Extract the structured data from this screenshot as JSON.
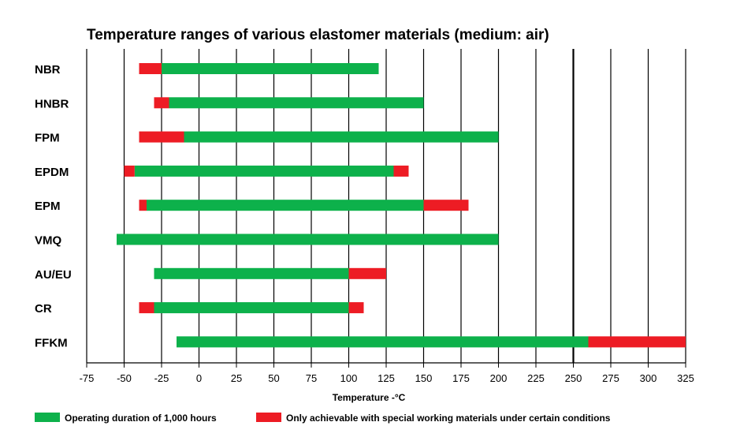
{
  "chart_data": {
    "type": "bar",
    "orientation": "horizontal-range",
    "title": "Temperature ranges of various elastomer materials (medium: air)",
    "xlabel": "Temperature -°C",
    "xlim": [
      -75,
      325
    ],
    "xticks": [
      -75,
      -50,
      -25,
      0,
      25,
      50,
      75,
      100,
      125,
      150,
      175,
      200,
      225,
      250,
      275,
      300,
      325
    ],
    "grid": true,
    "legend_position": "bottom",
    "colors": {
      "operating": "#0db14b",
      "special": "#ed1c24"
    },
    "legend": [
      {
        "key": "operating",
        "label": "Operating duration of 1,000 hours"
      },
      {
        "key": "special",
        "label": "Only achievable with special working materials under certain conditions"
      }
    ],
    "categories": [
      "NBR",
      "HNBR",
      "FPM",
      "EPDM",
      "EPM",
      "VMQ",
      "AU/EU",
      "CR",
      "FFKM"
    ],
    "series": [
      {
        "material": "NBR",
        "operating": [
          -25,
          120
        ],
        "special_low": [
          -40,
          -25
        ],
        "special_high": null
      },
      {
        "material": "HNBR",
        "operating": [
          -20,
          150
        ],
        "special_low": [
          -30,
          -20
        ],
        "special_high": null
      },
      {
        "material": "FPM",
        "operating": [
          -10,
          200
        ],
        "special_low": [
          -40,
          -10
        ],
        "special_high": null
      },
      {
        "material": "EPDM",
        "operating": [
          -43,
          130
        ],
        "special_low": [
          -50,
          -43
        ],
        "special_high": [
          130,
          140
        ]
      },
      {
        "material": "EPM",
        "operating": [
          -35,
          150
        ],
        "special_low": [
          -40,
          -35
        ],
        "special_high": [
          150,
          180
        ]
      },
      {
        "material": "VMQ",
        "operating": [
          -55,
          200
        ],
        "special_low": null,
        "special_high": null
      },
      {
        "material": "AU/EU",
        "operating": [
          -30,
          100
        ],
        "special_low": null,
        "special_high": [
          100,
          125
        ]
      },
      {
        "material": "CR",
        "operating": [
          -30,
          100
        ],
        "special_low": [
          -40,
          -30
        ],
        "special_high": [
          100,
          110
        ]
      },
      {
        "material": "FFKM",
        "operating": [
          -15,
          260
        ],
        "special_low": null,
        "special_high": [
          260,
          325
        ]
      }
    ]
  }
}
